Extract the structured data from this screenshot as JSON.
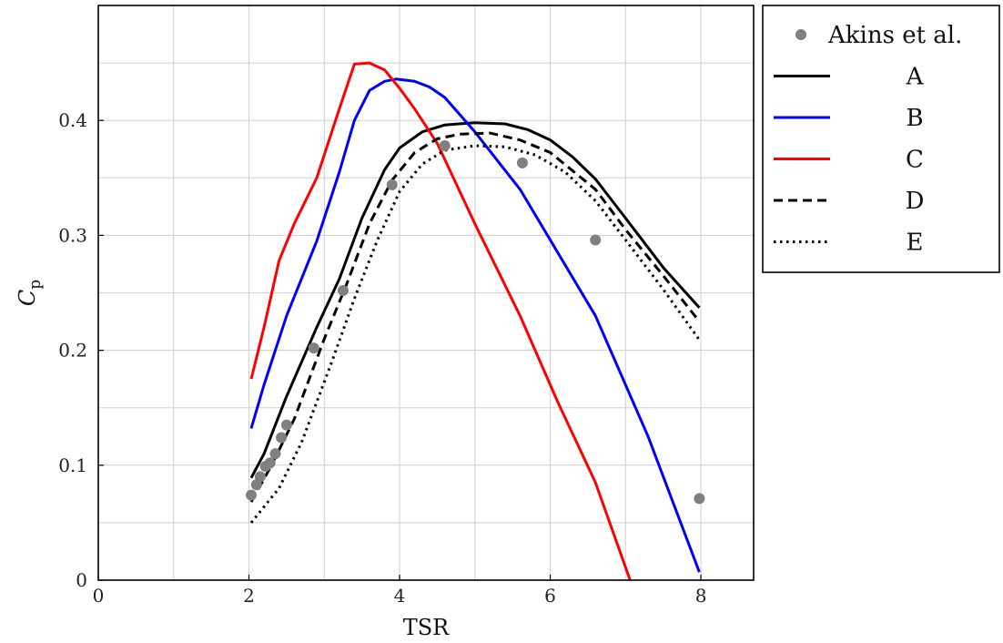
{
  "chart_data": {
    "type": "line",
    "xlabel": "TSR",
    "ylabel": "Cp",
    "ylabel_main": "C",
    "ylabel_sub": "p",
    "xlim": [
      0,
      8.7
    ],
    "ylim": [
      0,
      0.5
    ],
    "xticks": [
      0,
      2,
      4,
      6,
      8
    ],
    "yticks": [
      0,
      0.1,
      0.2,
      0.3,
      0.4
    ],
    "xtick_labels": [
      "0",
      "2",
      "4",
      "6",
      "8"
    ],
    "ytick_labels": [
      "0",
      "0.1",
      "0.2",
      "0.3",
      "0.4"
    ],
    "grid": true,
    "legend_position": "outside-top-right",
    "scatter": {
      "name": "Akins et al.",
      "color": "#808080",
      "points": [
        [
          2.03,
          0.074
        ],
        [
          2.1,
          0.083
        ],
        [
          2.15,
          0.09
        ],
        [
          2.22,
          0.099
        ],
        [
          2.28,
          0.102
        ],
        [
          2.35,
          0.11
        ],
        [
          2.43,
          0.124
        ],
        [
          2.5,
          0.135
        ],
        [
          2.86,
          0.202
        ],
        [
          3.25,
          0.252
        ],
        [
          3.9,
          0.344
        ],
        [
          4.6,
          0.378
        ],
        [
          5.63,
          0.363
        ],
        [
          6.6,
          0.296
        ],
        [
          7.98,
          0.071
        ]
      ]
    },
    "series": [
      {
        "name": "A",
        "color": "#000000",
        "dash": "solid",
        "points": [
          [
            2.03,
            0.089
          ],
          [
            2.2,
            0.11
          ],
          [
            2.5,
            0.16
          ],
          [
            2.9,
            0.22
          ],
          [
            3.2,
            0.262
          ],
          [
            3.5,
            0.315
          ],
          [
            3.8,
            0.357
          ],
          [
            4.0,
            0.376
          ],
          [
            4.3,
            0.39
          ],
          [
            4.6,
            0.396
          ],
          [
            5.0,
            0.398
          ],
          [
            5.4,
            0.397
          ],
          [
            5.7,
            0.392
          ],
          [
            6.0,
            0.383
          ],
          [
            6.3,
            0.368
          ],
          [
            6.6,
            0.349
          ],
          [
            7.0,
            0.315
          ],
          [
            7.5,
            0.272
          ],
          [
            7.98,
            0.237
          ]
        ]
      },
      {
        "name": "B",
        "color": "#0000ff",
        "dash": "solid",
        "points": [
          [
            2.03,
            0.132
          ],
          [
            2.2,
            0.17
          ],
          [
            2.5,
            0.23
          ],
          [
            2.9,
            0.295
          ],
          [
            3.2,
            0.355
          ],
          [
            3.4,
            0.4
          ],
          [
            3.6,
            0.426
          ],
          [
            3.8,
            0.434
          ],
          [
            3.95,
            0.436
          ],
          [
            4.2,
            0.434
          ],
          [
            4.4,
            0.429
          ],
          [
            4.6,
            0.42
          ],
          [
            5.0,
            0.39
          ],
          [
            5.3,
            0.365
          ],
          [
            5.6,
            0.34
          ],
          [
            6.1,
            0.285
          ],
          [
            6.6,
            0.23
          ],
          [
            7.3,
            0.125
          ],
          [
            7.98,
            0.007
          ]
        ]
      },
      {
        "name": "C",
        "color": "#ff0000",
        "dash": "solid",
        "points": [
          [
            2.03,
            0.175
          ],
          [
            2.2,
            0.22
          ],
          [
            2.4,
            0.278
          ],
          [
            2.6,
            0.31
          ],
          [
            2.9,
            0.35
          ],
          [
            3.2,
            0.41
          ],
          [
            3.4,
            0.449
          ],
          [
            3.6,
            0.45
          ],
          [
            3.8,
            0.444
          ],
          [
            4.0,
            0.428
          ],
          [
            4.2,
            0.41
          ],
          [
            4.5,
            0.38
          ],
          [
            5.0,
            0.31
          ],
          [
            5.6,
            0.23
          ],
          [
            6.1,
            0.155
          ],
          [
            6.6,
            0.085
          ],
          [
            7.06,
            0.0
          ]
        ]
      },
      {
        "name": "D",
        "color": "#000000",
        "dash": "dashed",
        "points": [
          [
            2.03,
            0.068
          ],
          [
            2.3,
            0.1
          ],
          [
            2.6,
            0.14
          ],
          [
            3.0,
            0.21
          ],
          [
            3.3,
            0.258
          ],
          [
            3.6,
            0.31
          ],
          [
            3.9,
            0.348
          ],
          [
            4.2,
            0.372
          ],
          [
            4.5,
            0.384
          ],
          [
            4.8,
            0.388
          ],
          [
            5.2,
            0.389
          ],
          [
            5.6,
            0.383
          ],
          [
            6.0,
            0.372
          ],
          [
            6.6,
            0.34
          ],
          [
            7.0,
            0.305
          ],
          [
            7.5,
            0.265
          ],
          [
            7.98,
            0.225
          ]
        ]
      },
      {
        "name": "E",
        "color": "#000000",
        "dash": "dotted",
        "points": [
          [
            2.03,
            0.05
          ],
          [
            2.4,
            0.08
          ],
          [
            2.7,
            0.12
          ],
          [
            3.1,
            0.19
          ],
          [
            3.4,
            0.245
          ],
          [
            3.7,
            0.295
          ],
          [
            4.0,
            0.338
          ],
          [
            4.3,
            0.362
          ],
          [
            4.6,
            0.374
          ],
          [
            5.0,
            0.378
          ],
          [
            5.4,
            0.377
          ],
          [
            5.8,
            0.37
          ],
          [
            6.2,
            0.355
          ],
          [
            6.6,
            0.33
          ],
          [
            7.0,
            0.296
          ],
          [
            7.5,
            0.253
          ],
          [
            7.98,
            0.209
          ]
        ]
      }
    ]
  }
}
